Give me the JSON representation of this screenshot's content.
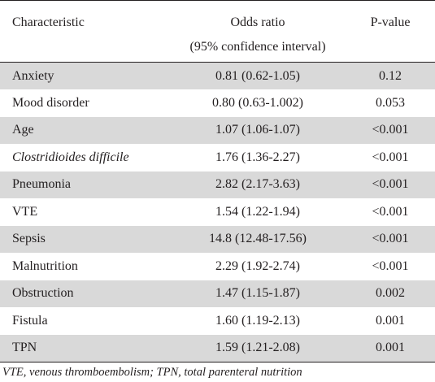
{
  "table": {
    "headers": {
      "characteristic": "Characteristic",
      "odds_ratio_line1": "Odds ratio",
      "odds_ratio_line2": "(95% confidence interval)",
      "p_value": "P-value"
    },
    "rows": [
      {
        "characteristic": "Anxiety",
        "odds_ratio": "0.81 (0.62-1.05)",
        "p_value": "0.12"
      },
      {
        "characteristic": "Mood disorder",
        "odds_ratio": "0.80 (0.63-1.002)",
        "p_value": "0.053"
      },
      {
        "characteristic": "Age",
        "odds_ratio": "1.07 (1.06-1.07)",
        "p_value": "<0.001"
      },
      {
        "characteristic": "Clostridioides difficile",
        "odds_ratio": "1.76 (1.36-2.27)",
        "p_value": "<0.001"
      },
      {
        "characteristic": "Pneumonia",
        "odds_ratio": "2.82 (2.17-3.63)",
        "p_value": "<0.001"
      },
      {
        "characteristic": "VTE",
        "odds_ratio": "1.54 (1.22-1.94)",
        "p_value": "<0.001"
      },
      {
        "characteristic": "Sepsis",
        "odds_ratio": "14.8 (12.48-17.56)",
        "p_value": "<0.001"
      },
      {
        "characteristic": "Malnutrition",
        "odds_ratio": "2.29 (1.92-2.74)",
        "p_value": "<0.001"
      },
      {
        "characteristic": "Obstruction",
        "odds_ratio": "1.47 (1.15-1.87)",
        "p_value": "0.002"
      },
      {
        "characteristic": "Fistula",
        "odds_ratio": "1.60 (1.19-2.13)",
        "p_value": "0.001"
      },
      {
        "characteristic": "TPN",
        "odds_ratio": "1.59 (1.21-2.08)",
        "p_value": "0.001"
      }
    ],
    "row_shade_color": "#d9d9d9"
  },
  "footnote": "VTE, venous thromboembolism; TPN, total parenteral nutrition"
}
